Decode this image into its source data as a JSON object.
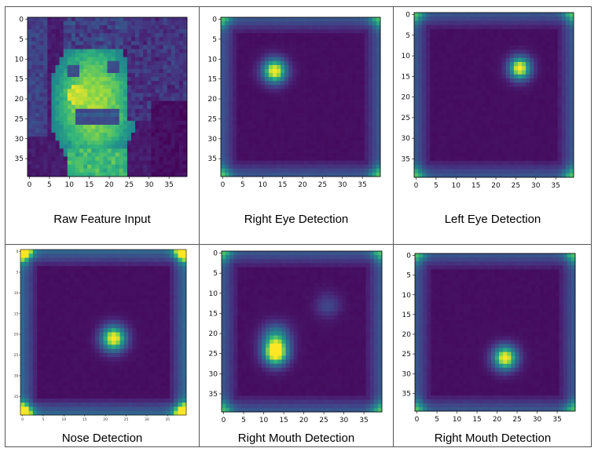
{
  "panels": [
    {
      "caption": "Raw Feature Input",
      "kind": "face",
      "x_ticks": [
        "0",
        "5",
        "10",
        "15",
        "20",
        "25",
        "30",
        "35"
      ],
      "y_ticks": [
        "0",
        "5",
        "10",
        "15",
        "20",
        "25",
        "30",
        "35"
      ]
    },
    {
      "caption": "Right Eye Detection",
      "kind": "activation",
      "hotspots": [
        {
          "x": 13,
          "y": 13,
          "intensity": 1.0,
          "spread": 2.2
        }
      ],
      "x_ticks": [
        "0",
        "5",
        "10",
        "15",
        "20",
        "25",
        "30",
        "35"
      ],
      "y_ticks": [
        "0",
        "5",
        "10",
        "15",
        "20",
        "25",
        "30",
        "35"
      ]
    },
    {
      "caption": "Left Eye Detection",
      "kind": "activation",
      "hotspots": [
        {
          "x": 26,
          "y": 13,
          "intensity": 1.0,
          "spread": 2.0
        }
      ],
      "x_ticks": [
        "0",
        "5",
        "10",
        "15",
        "20",
        "25",
        "30",
        "35"
      ],
      "y_ticks": [
        "0",
        "5",
        "10",
        "15",
        "20",
        "25",
        "30",
        "35"
      ]
    },
    {
      "caption": "Nose Detection",
      "kind": "activation",
      "hotspots": [
        {
          "x": 22,
          "y": 21,
          "intensity": 1.0,
          "spread": 2.2
        }
      ],
      "strong_corners": true,
      "x_ticks": [
        "0",
        "5",
        "10",
        "15",
        "20",
        "25",
        "30",
        "35"
      ],
      "y_ticks": [
        "0",
        "5",
        "10",
        "15",
        "20",
        "25",
        "30",
        "35"
      ]
    },
    {
      "caption": "Right Mouth Detection",
      "kind": "activation",
      "hotspots": [
        {
          "x": 13,
          "y": 25,
          "intensity": 1.0,
          "spread": 2.2
        },
        {
          "x": 13,
          "y": 21,
          "intensity": 0.55,
          "spread": 2.5
        },
        {
          "x": 26,
          "y": 13,
          "intensity": 0.22,
          "spread": 2.2
        }
      ],
      "x_ticks": [
        "0",
        "5",
        "10",
        "15",
        "20",
        "25",
        "30",
        "35"
      ],
      "y_ticks": [
        "0",
        "5",
        "10",
        "15",
        "20",
        "25",
        "30",
        "35"
      ]
    },
    {
      "caption": "Right Mouth Detection",
      "kind": "activation",
      "hotspots": [
        {
          "x": 22,
          "y": 26,
          "intensity": 1.0,
          "spread": 2.2
        }
      ],
      "x_ticks": [
        "0",
        "5",
        "10",
        "15",
        "20",
        "25",
        "30",
        "35"
      ],
      "y_ticks": [
        "0",
        "5",
        "10",
        "15",
        "20",
        "25",
        "30",
        "35"
      ]
    }
  ]
}
